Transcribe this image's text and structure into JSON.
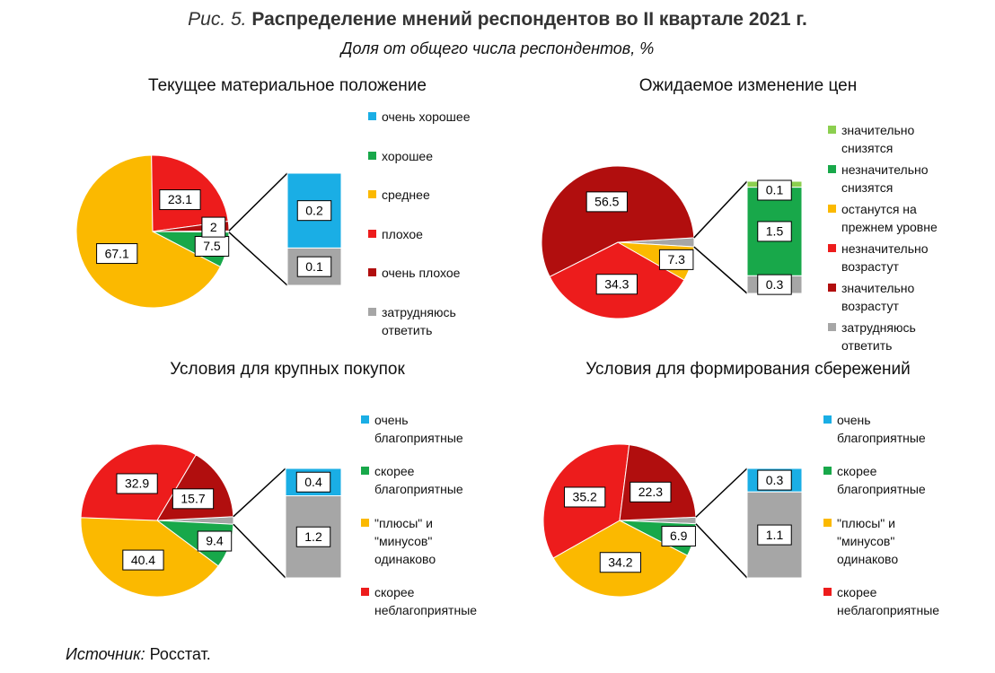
{
  "figure": {
    "number": "Рис. 5.",
    "title": "Распределение мнений респондентов во II квартале 2021 г.",
    "subtitle": "Доля от общего числа респондентов, %",
    "source_label": "Источник:",
    "source": "Росстат."
  },
  "chart_data": [
    {
      "type": "pie",
      "title": "Текущее материальное положение",
      "other_color": "#a6a6a6",
      "series": [
        {
          "name": "очень хорошее",
          "color": "#1aaee5",
          "values": [
            0.2
          ],
          "placement": "bar"
        },
        {
          "name": "хорошее",
          "color": "#18a84a",
          "values": [
            7.5
          ],
          "placement": "pie"
        },
        {
          "name": "среднее",
          "color": "#fbb900",
          "values": [
            67.1
          ],
          "placement": "pie"
        },
        {
          "name": "плохое",
          "color": "#ed1c1c",
          "values": [
            23.1
          ],
          "placement": "pie"
        },
        {
          "name": "очень плохое",
          "color": "#b10e0e",
          "values": [
            2
          ],
          "placement": "pie"
        },
        {
          "name": "затрудняюсь ответить",
          "color": "#a6a6a6",
          "values": [
            0.1
          ],
          "placement": "bar"
        }
      ]
    },
    {
      "type": "pie",
      "title": "Ожидаемое изменение цен",
      "other_color": "#a6a6a6",
      "series": [
        {
          "name": "значительно снизятся",
          "color": "#8ccf4f",
          "values": [
            0.1
          ],
          "placement": "bar"
        },
        {
          "name": "незначительно снизятся",
          "color": "#18a84a",
          "values": [
            1.5
          ],
          "placement": "bar"
        },
        {
          "name": "останутся на прежнем уровне",
          "color": "#fbb900",
          "values": [
            7.3
          ],
          "placement": "pie"
        },
        {
          "name": "незначительно возрастут",
          "color": "#ed1c1c",
          "values": [
            34.3
          ],
          "placement": "pie"
        },
        {
          "name": "значительно возрастут",
          "color": "#b10e0e",
          "values": [
            56.5
          ],
          "placement": "pie"
        },
        {
          "name": "затрудняюсь ответить",
          "color": "#a6a6a6",
          "values": [
            0.3
          ],
          "placement": "bar"
        }
      ]
    },
    {
      "type": "pie",
      "title": "Условия для крупных покупок",
      "other_color": "#a6a6a6",
      "series": [
        {
          "name": "очень благоприятные",
          "color": "#1aaee5",
          "values": [
            0.4
          ],
          "placement": "bar"
        },
        {
          "name": "скорее благоприятные",
          "color": "#18a84a",
          "values": [
            9.4
          ],
          "placement": "pie"
        },
        {
          "name": "\"плюсы\" и \"минусов\" одинаково",
          "color": "#fbb900",
          "values": [
            40.4
          ],
          "placement": "pie"
        },
        {
          "name": "скорее неблагоприятные",
          "color": "#ed1c1c",
          "values": [
            32.9
          ],
          "placement": "pie"
        },
        {
          "name": null,
          "color": "#b10e0e",
          "values": [
            15.7
          ],
          "placement": "pie"
        },
        {
          "name": null,
          "color": "#a6a6a6",
          "values": [
            1.2
          ],
          "placement": "bar"
        }
      ]
    },
    {
      "type": "pie",
      "title": "Условия для формирования сбережений",
      "other_color": "#a6a6a6",
      "series": [
        {
          "name": "очень благоприятные",
          "color": "#1aaee5",
          "values": [
            0.3
          ],
          "placement": "bar"
        },
        {
          "name": "скорее благоприятные",
          "color": "#18a84a",
          "values": [
            6.9
          ],
          "placement": "pie"
        },
        {
          "name": "\"плюсы\" и \"минусов\" одинаково",
          "color": "#fbb900",
          "values": [
            34.2
          ],
          "placement": "pie"
        },
        {
          "name": "скорее неблагоприятные",
          "color": "#ed1c1c",
          "values": [
            35.2
          ],
          "placement": "pie"
        },
        {
          "name": null,
          "color": "#b10e0e",
          "values": [
            22.3
          ],
          "placement": "pie"
        },
        {
          "name": null,
          "color": "#a6a6a6",
          "values": [
            1.1
          ],
          "placement": "bar"
        }
      ]
    }
  ]
}
